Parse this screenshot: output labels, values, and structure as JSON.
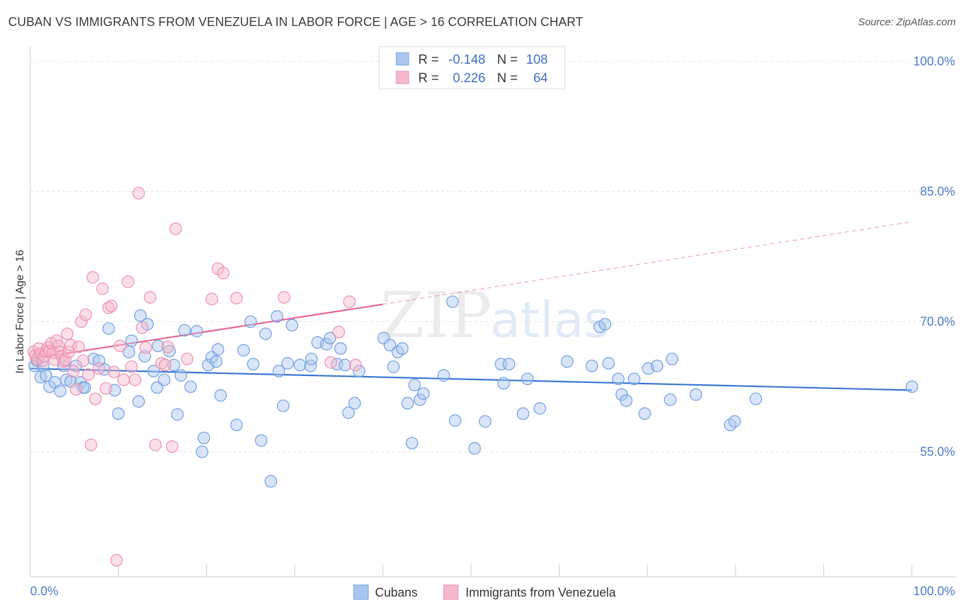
{
  "title": "CUBAN VS IMMIGRANTS FROM VENEZUELA IN LABOR FORCE | AGE > 16 CORRELATION CHART",
  "source": "Source: ZipAtlas.com",
  "watermark": {
    "zip": "ZIP",
    "atlas": "atlas"
  },
  "legend_box": {
    "rows": [
      {
        "r_label": "R =",
        "r_value": "-0.148",
        "n_label": "N =",
        "n_value": "108",
        "color": "#a9c6f0"
      },
      {
        "r_label": "R =",
        "r_value": "0.226",
        "n_label": "N =",
        "n_value": "64",
        "color": "#f6b8cb"
      }
    ]
  },
  "chart_data": {
    "type": "scatter",
    "title": "CUBAN VS IMMIGRANTS FROM VENEZUELA IN LABOR FORCE | AGE > 16 CORRELATION CHART",
    "xlabel": "",
    "ylabel": "In Labor Force | Age > 16",
    "xlim": [
      0,
      100
    ],
    "ylim": [
      40.6,
      101.7
    ],
    "x_tick_labels": [
      "0.0%",
      "100.0%"
    ],
    "y_ticks": [
      55,
      70,
      85,
      100
    ],
    "y_tick_labels": [
      "55.0%",
      "70.0%",
      "85.0%",
      "100.0%"
    ],
    "grid": true,
    "legend_position": "bottom-center",
    "series": [
      {
        "name": "Cubans",
        "color": "#a9c6f0",
        "stroke": "#6f9ee0",
        "trend": {
          "x": [
            0,
            100
          ],
          "y": [
            64.6,
            62.1
          ],
          "color": "#3574d4"
        },
        "points": [
          [
            0.5,
            64.9
          ],
          [
            0.8,
            65.5
          ],
          [
            1.2,
            63.6
          ],
          [
            1.5,
            64.9
          ],
          [
            1.8,
            63.8
          ],
          [
            2.2,
            62.5
          ],
          [
            2.8,
            63.0
          ],
          [
            3.4,
            62.0
          ],
          [
            3.8,
            64.9
          ],
          [
            4.1,
            63.3
          ],
          [
            4.6,
            63.1
          ],
          [
            5.2,
            64.9
          ],
          [
            5.7,
            63.0
          ],
          [
            6.0,
            62.4
          ],
          [
            6.2,
            62.4
          ],
          [
            7.2,
            65.7
          ],
          [
            7.8,
            65.5
          ],
          [
            8.4,
            64.5
          ],
          [
            8.9,
            69.2
          ],
          [
            9.6,
            62.1
          ],
          [
            10.0,
            59.4
          ],
          [
            11.2,
            66.5
          ],
          [
            11.5,
            67.8
          ],
          [
            12.3,
            60.8
          ],
          [
            12.5,
            70.7
          ],
          [
            13.0,
            66.0
          ],
          [
            13.3,
            69.7
          ],
          [
            14.0,
            64.3
          ],
          [
            14.4,
            62.4
          ],
          [
            14.5,
            67.2
          ],
          [
            15.2,
            63.3
          ],
          [
            15.8,
            66.6
          ],
          [
            16.3,
            65.0
          ],
          [
            16.7,
            59.3
          ],
          [
            17.1,
            63.8
          ],
          [
            17.5,
            69.0
          ],
          [
            18.2,
            62.5
          ],
          [
            18.9,
            68.9
          ],
          [
            19.5,
            55.0
          ],
          [
            19.7,
            56.6
          ],
          [
            20.2,
            65.0
          ],
          [
            20.6,
            65.9
          ],
          [
            21.1,
            65.4
          ],
          [
            21.3,
            66.8
          ],
          [
            21.6,
            61.5
          ],
          [
            23.4,
            58.1
          ],
          [
            24.2,
            66.7
          ],
          [
            25.0,
            70.0
          ],
          [
            25.3,
            65.1
          ],
          [
            26.2,
            56.3
          ],
          [
            26.7,
            68.6
          ],
          [
            27.3,
            51.6
          ],
          [
            28.0,
            70.6
          ],
          [
            28.2,
            64.3
          ],
          [
            28.7,
            60.3
          ],
          [
            29.2,
            65.2
          ],
          [
            29.7,
            69.6
          ],
          [
            30.6,
            65.0
          ],
          [
            31.8,
            64.9
          ],
          [
            31.9,
            65.7
          ],
          [
            32.6,
            67.6
          ],
          [
            33.6,
            67.4
          ],
          [
            34.0,
            68.1
          ],
          [
            34.8,
            65.1
          ],
          [
            35.2,
            66.9
          ],
          [
            35.7,
            65.0
          ],
          [
            36.1,
            59.5
          ],
          [
            36.8,
            60.6
          ],
          [
            37.3,
            64.3
          ],
          [
            40.1,
            68.1
          ],
          [
            40.8,
            67.3
          ],
          [
            41.2,
            64.8
          ],
          [
            41.7,
            66.5
          ],
          [
            42.2,
            66.9
          ],
          [
            42.8,
            60.6
          ],
          [
            43.3,
            56.0
          ],
          [
            43.6,
            62.7
          ],
          [
            44.2,
            61.0
          ],
          [
            44.6,
            61.7
          ],
          [
            46.9,
            63.8
          ],
          [
            47.9,
            72.3
          ],
          [
            48.2,
            58.6
          ],
          [
            50.4,
            55.4
          ],
          [
            51.6,
            58.5
          ],
          [
            53.4,
            65.1
          ],
          [
            53.7,
            62.9
          ],
          [
            54.3,
            65.1
          ],
          [
            55.9,
            59.4
          ],
          [
            56.4,
            63.4
          ],
          [
            57.8,
            60.0
          ],
          [
            60.9,
            65.4
          ],
          [
            63.7,
            64.9
          ],
          [
            64.6,
            69.4
          ],
          [
            65.2,
            69.7
          ],
          [
            65.6,
            65.2
          ],
          [
            66.7,
            63.4
          ],
          [
            67.1,
            61.6
          ],
          [
            67.6,
            60.9
          ],
          [
            68.5,
            63.4
          ],
          [
            69.7,
            59.4
          ],
          [
            70.1,
            64.6
          ],
          [
            71.1,
            64.9
          ],
          [
            72.6,
            61.0
          ],
          [
            72.8,
            65.7
          ],
          [
            75.5,
            61.6
          ],
          [
            79.4,
            58.1
          ],
          [
            79.9,
            58.5
          ],
          [
            82.3,
            61.1
          ],
          [
            100.0,
            62.5
          ]
        ]
      },
      {
        "name": "Immigrants from Venezuela",
        "color": "#f6b8cb",
        "stroke": "#ec8fab",
        "trend": {
          "x": [
            0,
            40
          ],
          "y": [
            65.7,
            72.0
          ],
          "dashed_to": [
            100,
            81.5
          ],
          "color": "#e8648e"
        },
        "points": [
          [
            0.4,
            66.5
          ],
          [
            0.6,
            66.1
          ],
          [
            0.8,
            65.7
          ],
          [
            1.0,
            66.9
          ],
          [
            1.2,
            66.3
          ],
          [
            1.4,
            65.5
          ],
          [
            1.6,
            66.0
          ],
          [
            1.8,
            66.6
          ],
          [
            2.0,
            67.0
          ],
          [
            2.2,
            66.6
          ],
          [
            2.4,
            67.5
          ],
          [
            2.6,
            66.4
          ],
          [
            2.8,
            65.6
          ],
          [
            3.0,
            67.8
          ],
          [
            3.2,
            67.2
          ],
          [
            3.4,
            66.5
          ],
          [
            3.6,
            66.0
          ],
          [
            3.8,
            65.4
          ],
          [
            4.0,
            65.6
          ],
          [
            4.2,
            68.6
          ],
          [
            4.4,
            66.5
          ],
          [
            4.6,
            67.3
          ],
          [
            4.9,
            64.3
          ],
          [
            5.2,
            62.2
          ],
          [
            5.5,
            67.1
          ],
          [
            5.8,
            70.0
          ],
          [
            6.0,
            65.5
          ],
          [
            6.3,
            70.8
          ],
          [
            6.6,
            63.9
          ],
          [
            6.9,
            55.8
          ],
          [
            7.1,
            75.1
          ],
          [
            7.4,
            61.1
          ],
          [
            7.8,
            64.6
          ],
          [
            8.2,
            73.8
          ],
          [
            8.6,
            62.3
          ],
          [
            8.9,
            71.6
          ],
          [
            9.2,
            71.8
          ],
          [
            9.5,
            64.2
          ],
          [
            9.8,
            42.5
          ],
          [
            10.2,
            67.2
          ],
          [
            10.6,
            63.3
          ],
          [
            11.1,
            74.6
          ],
          [
            11.5,
            64.8
          ],
          [
            11.9,
            63.3
          ],
          [
            12.3,
            84.8
          ],
          [
            12.7,
            69.3
          ],
          [
            13.1,
            67.0
          ],
          [
            13.6,
            72.8
          ],
          [
            14.2,
            55.8
          ],
          [
            14.9,
            65.2
          ],
          [
            15.3,
            65.0
          ],
          [
            15.6,
            67.1
          ],
          [
            16.1,
            55.6
          ],
          [
            16.5,
            80.7
          ],
          [
            17.8,
            65.7
          ],
          [
            20.6,
            72.6
          ],
          [
            21.3,
            76.1
          ],
          [
            21.9,
            75.6
          ],
          [
            23.4,
            72.7
          ],
          [
            28.8,
            72.8
          ],
          [
            34.1,
            65.3
          ],
          [
            35.0,
            68.8
          ],
          [
            36.2,
            72.3
          ],
          [
            36.9,
            65.0
          ]
        ]
      }
    ]
  },
  "bottom_legend": [
    "Cubans",
    "Immigrants from Venezuela"
  ]
}
